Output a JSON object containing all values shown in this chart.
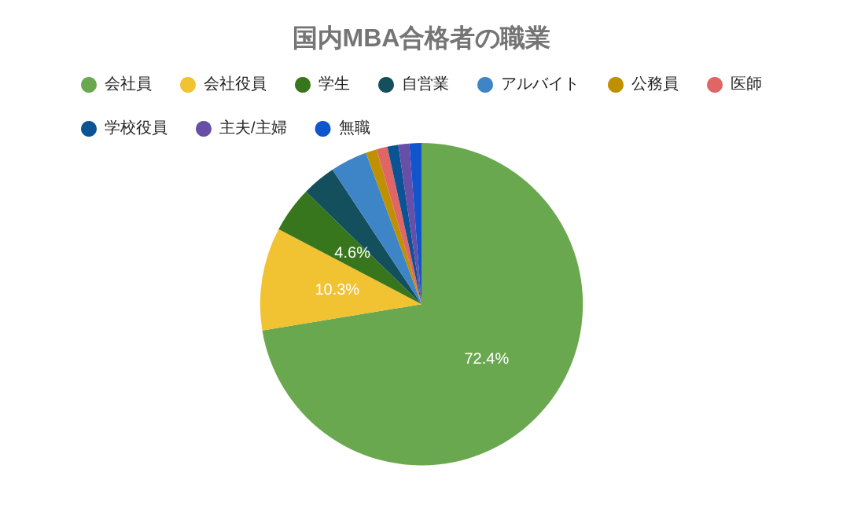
{
  "chart_data": {
    "type": "pie",
    "title": "国内MBA合格者の職業",
    "categories": [
      "会社員",
      "会社役員",
      "学生",
      "自営業",
      "アルバイト",
      "公務員",
      "医師",
      "学校役員",
      "主夫/主婦",
      "無職"
    ],
    "values": [
      72.4,
      10.3,
      4.6,
      3.4,
      3.7,
      1.1,
      1.1,
      1.1,
      1.1,
      1.2
    ],
    "colors": [
      "#6aa84f",
      "#f1c232",
      "#38761d",
      "#134f5c",
      "#3d85c6",
      "#bf9000",
      "#e06666",
      "#0b5394",
      "#674ea7",
      "#1155cc"
    ],
    "value_labels": [
      "72.4%",
      "10.3%",
      "4.6%",
      null,
      null,
      null,
      null,
      null,
      null,
      null
    ],
    "legend": "top"
  }
}
